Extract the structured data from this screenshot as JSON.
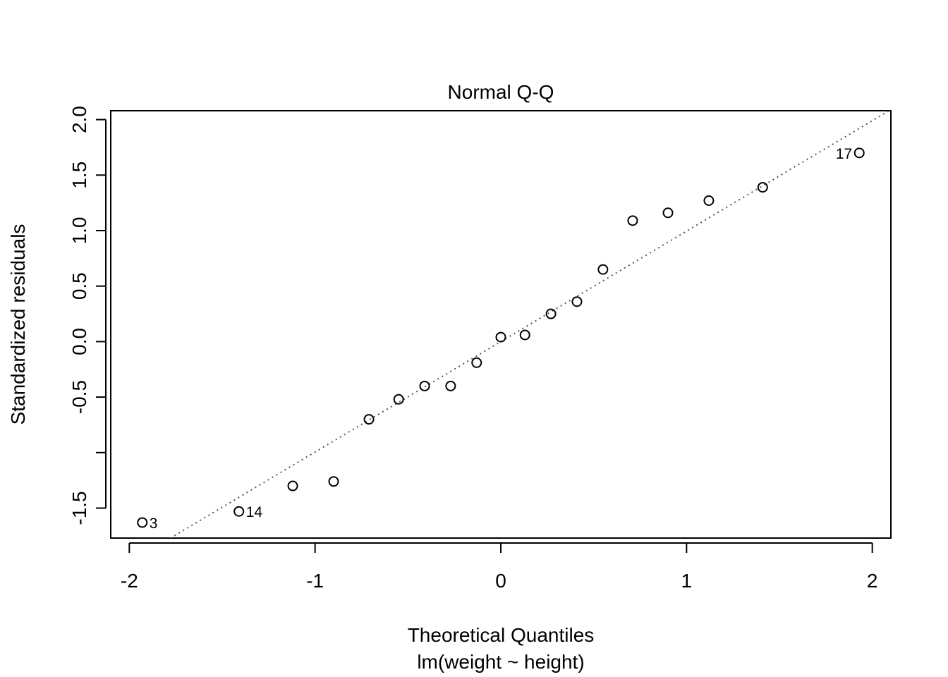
{
  "chart_data": {
    "type": "scatter",
    "title": "Normal Q-Q",
    "xlabel": "Theoretical Quantiles",
    "subtitle": "lm(weight ~ height)",
    "ylabel": "Standardized residuals",
    "xlim": [
      -2.1,
      2.1
    ],
    "ylim": [
      -1.77,
      2.08
    ],
    "x_ticks": [
      -2,
      -1,
      0,
      1,
      2
    ],
    "x_tick_labels": [
      "-2",
      "-1",
      "0",
      "1",
      "2"
    ],
    "y_ticks": [
      -1.5,
      -1.0,
      -0.5,
      0.0,
      0.5,
      1.0,
      1.5,
      2.0
    ],
    "y_tick_labels": [
      "-1.5",
      "",
      "-0.5",
      "0.0",
      "0.5",
      "1.0",
      "1.5",
      "2.0"
    ],
    "grid": false,
    "reference_line": {
      "style": "dotted",
      "intercept": 0.0,
      "slope": 0.995
    },
    "points": [
      {
        "x": -1.93,
        "y": -1.63,
        "label": "3"
      },
      {
        "x": -1.41,
        "y": -1.53,
        "label": "14"
      },
      {
        "x": -1.12,
        "y": -1.3,
        "label": ""
      },
      {
        "x": -0.9,
        "y": -1.26,
        "label": ""
      },
      {
        "x": -0.71,
        "y": -0.7,
        "label": ""
      },
      {
        "x": -0.55,
        "y": -0.52,
        "label": ""
      },
      {
        "x": -0.41,
        "y": -0.4,
        "label": ""
      },
      {
        "x": -0.27,
        "y": -0.4,
        "label": ""
      },
      {
        "x": -0.13,
        "y": -0.19,
        "label": ""
      },
      {
        "x": 0.0,
        "y": 0.04,
        "label": ""
      },
      {
        "x": 0.13,
        "y": 0.06,
        "label": ""
      },
      {
        "x": 0.27,
        "y": 0.25,
        "label": ""
      },
      {
        "x": 0.41,
        "y": 0.36,
        "label": ""
      },
      {
        "x": 0.55,
        "y": 0.65,
        "label": ""
      },
      {
        "x": 0.71,
        "y": 1.09,
        "label": ""
      },
      {
        "x": 0.9,
        "y": 1.16,
        "label": ""
      },
      {
        "x": 1.12,
        "y": 1.27,
        "label": ""
      },
      {
        "x": 1.41,
        "y": 1.39,
        "label": ""
      },
      {
        "x": 1.93,
        "y": 1.7,
        "label": "17"
      }
    ]
  }
}
